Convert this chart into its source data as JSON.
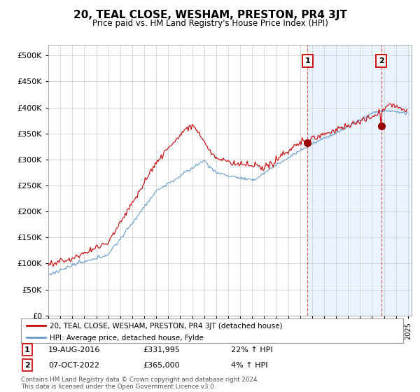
{
  "title": "20, TEAL CLOSE, WESHAM, PRESTON, PR4 3JT",
  "subtitle": "Price paid vs. HM Land Registry's House Price Index (HPI)",
  "yticks": [
    0,
    50000,
    100000,
    150000,
    200000,
    250000,
    300000,
    350000,
    400000,
    450000,
    500000
  ],
  "xlim_start": 1995.0,
  "xlim_end": 2025.3,
  "ylim": [
    0,
    520000
  ],
  "sale1_date_num": 2016.63,
  "sale1_price": 331995,
  "sale1_label": "1",
  "sale1_date_str": "19-AUG-2016",
  "sale1_price_str": "£331,995",
  "sale1_hpi_str": "22% ↑ HPI",
  "sale2_date_num": 2022.77,
  "sale2_price": 365000,
  "sale2_label": "2",
  "sale2_date_str": "07-OCT-2022",
  "sale2_price_str": "£365,000",
  "sale2_hpi_str": "4% ↑ HPI",
  "red_color": "#cc0000",
  "blue_color": "#6699cc",
  "shade_color": "#ddeeff",
  "legend_label_red": "20, TEAL CLOSE, WESHAM, PRESTON, PR4 3JT (detached house)",
  "legend_label_blue": "HPI: Average price, detached house, Fylde",
  "footer": "Contains HM Land Registry data © Crown copyright and database right 2024.\nThis data is licensed under the Open Government Licence v3.0.",
  "background_color": "#ffffff",
  "grid_color": "#cccccc"
}
